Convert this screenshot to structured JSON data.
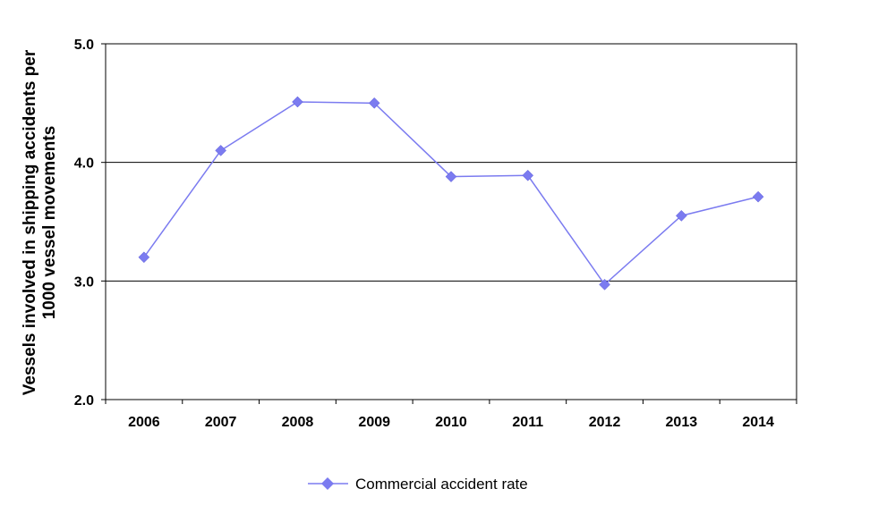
{
  "chart_data": {
    "type": "line",
    "categories": [
      "2006",
      "2007",
      "2008",
      "2009",
      "2010",
      "2011",
      "2012",
      "2013",
      "2014"
    ],
    "series": [
      {
        "name": "Commercial accident rate",
        "values": [
          3.2,
          4.1,
          4.51,
          4.5,
          3.88,
          3.89,
          2.97,
          3.55,
          3.71
        ],
        "color": "#7b7bf0"
      }
    ],
    "xlabel": "",
    "ylabel_lines": [
      "Vessels involved in shipping  accidents per",
      "1000 vessel movements"
    ],
    "ylim": [
      2.0,
      5.0
    ],
    "yticks": [
      "2.0",
      "3.0",
      "4.0",
      "5.0"
    ],
    "grid": true,
    "legend_position": "bottom",
    "marker": "diamond"
  }
}
